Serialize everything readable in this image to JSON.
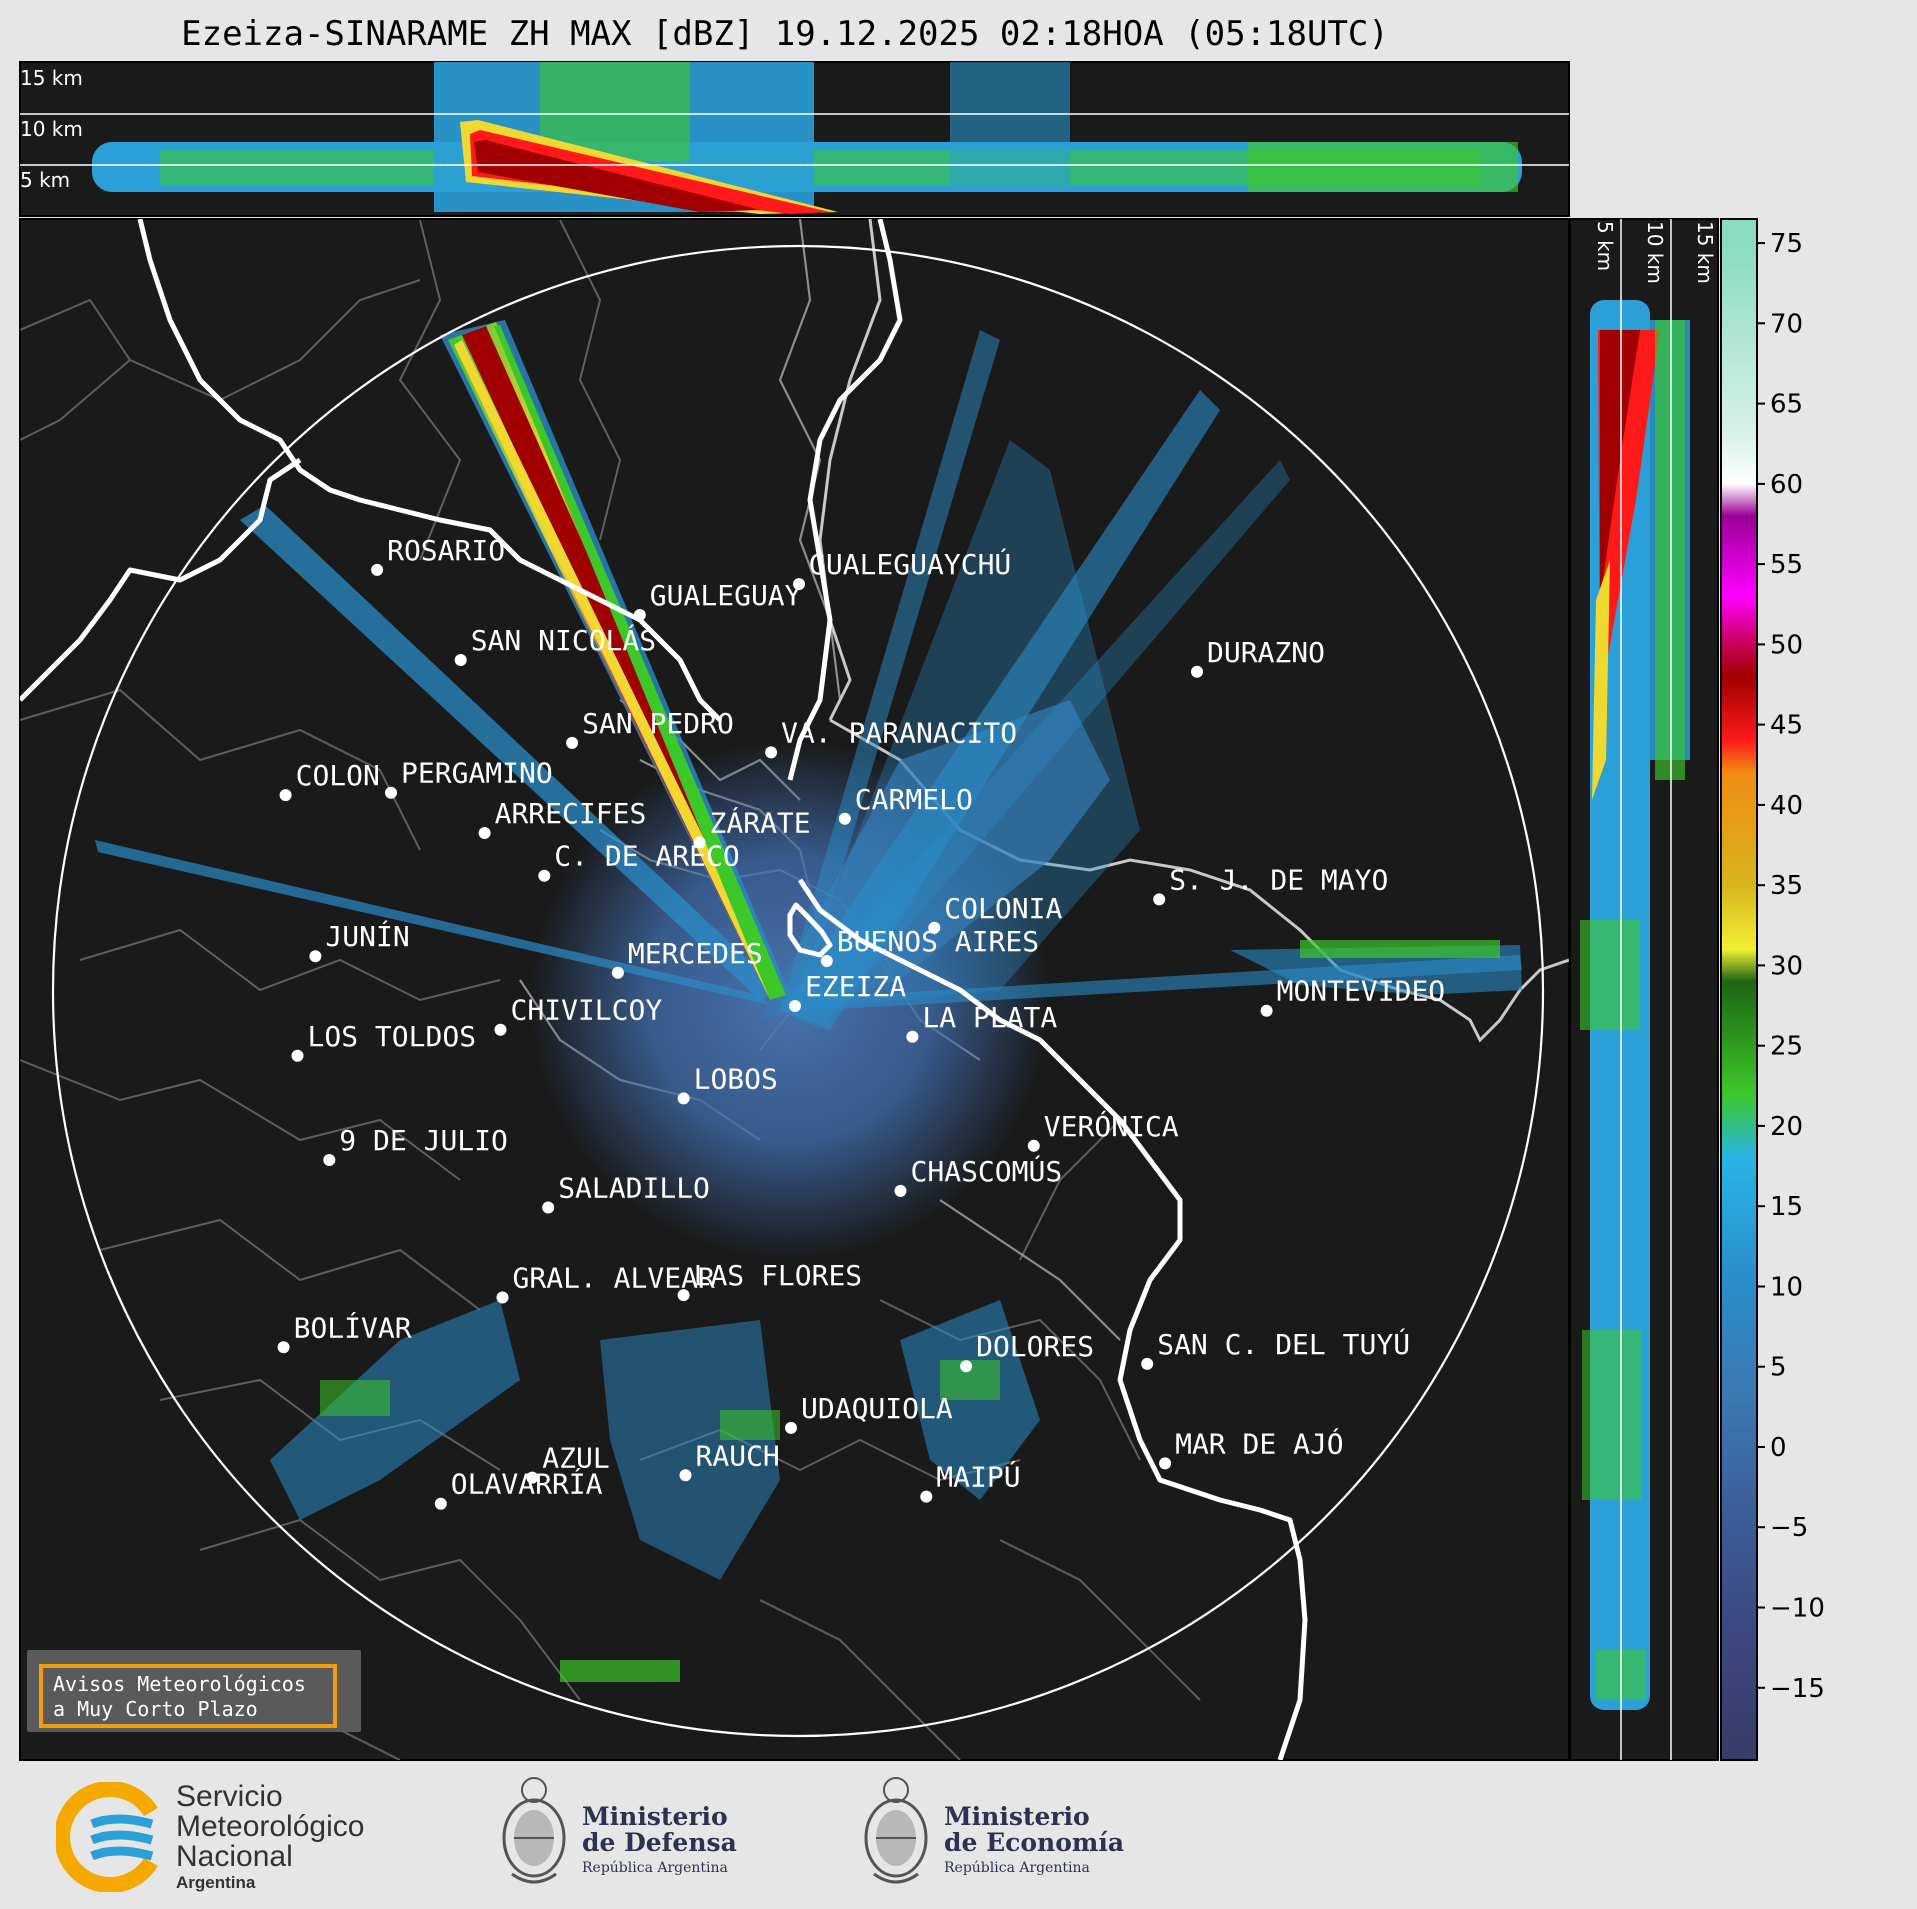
{
  "title": "Ezeiza-SINARAME ZH MAX [dBZ] 19.12.2025 02:18HOA (05:18UTC)",
  "top_panel": {
    "labels": [
      "15 km",
      "10 km",
      "5 km"
    ]
  },
  "side_panel": {
    "labels": [
      "5 km",
      "10 km",
      "15 km"
    ]
  },
  "colorbar": {
    "ticks": [
      "75",
      "70",
      "65",
      "60",
      "55",
      "50",
      "45",
      "40",
      "35",
      "30",
      "25",
      "20",
      "15",
      "10",
      "5",
      "0",
      "−5",
      "−10",
      "−15"
    ],
    "stops": [
      {
        "dbz": 75,
        "color": "#88dcc0"
      },
      {
        "dbz": 63,
        "color": "#d8f0e8"
      },
      {
        "dbz": 60,
        "color": "#ffffff"
      },
      {
        "dbz": 58,
        "color": "#9a0096"
      },
      {
        "dbz": 53,
        "color": "#ff00ff"
      },
      {
        "dbz": 50,
        "color": "#c8005a"
      },
      {
        "dbz": 48,
        "color": "#a00000"
      },
      {
        "dbz": 44,
        "color": "#ff1a1a"
      },
      {
        "dbz": 42,
        "color": "#f08c14"
      },
      {
        "dbz": 35,
        "color": "#d8b41e"
      },
      {
        "dbz": 31,
        "color": "#f0f032"
      },
      {
        "dbz": 29,
        "color": "#1e6414"
      },
      {
        "dbz": 22,
        "color": "#3cc828"
      },
      {
        "dbz": 18,
        "color": "#28b4e6"
      },
      {
        "dbz": 10,
        "color": "#2a8cc8"
      },
      {
        "dbz": 3,
        "color": "#3c78b4"
      },
      {
        "dbz": -5,
        "color": "#3c5a96"
      },
      {
        "dbz": -12,
        "color": "#3c4680"
      },
      {
        "dbz": -19,
        "color": "#3a3c6a"
      }
    ]
  },
  "cities": [
    {
      "name": "ROSARIO",
      "lon": -60.64,
      "lat": -32.95
    },
    {
      "name": "GUALEGUAYCHÚ",
      "lon": -58.52,
      "lat": -33.01
    },
    {
      "name": "GUALEGUAY",
      "lon": -59.32,
      "lat": -33.14
    },
    {
      "name": "SAN NICOLÁS",
      "lon": -60.22,
      "lat": -33.33
    },
    {
      "name": "DURAZNO",
      "lon": -56.52,
      "lat": -33.38
    },
    {
      "name": "SAN PEDRO",
      "lon": -59.66,
      "lat": -33.68
    },
    {
      "name": "VA. PARANACITO",
      "lon": -58.66,
      "lat": -33.72
    },
    {
      "name": "COLON",
      "lon": -61.1,
      "lat": -33.9
    },
    {
      "name": "PERGAMINO",
      "lon": -60.57,
      "lat": -33.89
    },
    {
      "name": "CARMELO",
      "lon": -58.29,
      "lat": -34.0
    },
    {
      "name": "ARRECIFES",
      "lon": -60.1,
      "lat": -34.06
    },
    {
      "name": "ZÁRATE",
      "lon": -59.02,
      "lat": -34.1
    },
    {
      "name": "C. DE ARECO",
      "lon": -59.8,
      "lat": -34.24
    },
    {
      "name": "S. J. DE MAYO",
      "lon": -56.71,
      "lat": -34.34
    },
    {
      "name": "COLONIA",
      "lon": -57.84,
      "lat": -34.46
    },
    {
      "name": "BUENOS AIRES",
      "lon": -58.38,
      "lat": -34.6
    },
    {
      "name": "JUNÍN",
      "lon": -60.95,
      "lat": -34.58
    },
    {
      "name": "MERCEDES",
      "lon": -59.43,
      "lat": -34.65
    },
    {
      "name": "EZEIZA",
      "lon": -58.54,
      "lat": -34.79
    },
    {
      "name": "CHIVILCOY",
      "lon": -60.02,
      "lat": -34.89
    },
    {
      "name": "MONTEVIDEO",
      "lon": -56.17,
      "lat": -34.81
    },
    {
      "name": "LA PLATA",
      "lon": -57.95,
      "lat": -34.92
    },
    {
      "name": "LOS TOLDOS",
      "lon": -61.04,
      "lat": -35.0
    },
    {
      "name": "LOBOS",
      "lon": -59.1,
      "lat": -35.18
    },
    {
      "name": "VERÓNICA",
      "lon": -57.34,
      "lat": -35.38
    },
    {
      "name": "9 DE JULIO",
      "lon": -60.88,
      "lat": -35.44
    },
    {
      "name": "CHASCOMÚS",
      "lon": -58.01,
      "lat": -35.57
    },
    {
      "name": "SALADILLO",
      "lon": -59.78,
      "lat": -35.64
    },
    {
      "name": "GRAL. ALVEAR",
      "lon": -60.01,
      "lat": -36.02
    },
    {
      "name": "LAS FLORES",
      "lon": -59.1,
      "lat": -36.01
    },
    {
      "name": "BOLÍVAR",
      "lon": -61.11,
      "lat": -36.23
    },
    {
      "name": "DOLORES",
      "lon": -57.68,
      "lat": -36.31
    },
    {
      "name": "SAN C. DEL TUYÚ",
      "lon": -56.77,
      "lat": -36.3
    },
    {
      "name": "UDAQUIOLA",
      "lon": -58.56,
      "lat": -36.57
    },
    {
      "name": "MAR DE AJÓ",
      "lon": -56.68,
      "lat": -36.72
    },
    {
      "name": "AZUL",
      "lon": -59.86,
      "lat": -36.78
    },
    {
      "name": "RAUCH",
      "lon": -59.09,
      "lat": -36.77
    },
    {
      "name": "MAIPÚ",
      "lon": -57.88,
      "lat": -36.86
    },
    {
      "name": "OLAVARRÍA",
      "lon": -60.32,
      "lat": -36.89
    }
  ],
  "notice": {
    "line1": "Avisos Meteorológicos",
    "line2": "a Muy Corto Plazo"
  },
  "logos": {
    "smn": {
      "line1": "Servicio",
      "line2": "Meteorológico",
      "line3": "Nacional",
      "line4": "Argentina"
    },
    "defensa": {
      "line1": "Ministerio",
      "line2": "de Defensa",
      "line3": "República Argentina"
    },
    "economia": {
      "line1": "Ministerio",
      "line2": "de Economía",
      "line3": "República Argentina"
    }
  }
}
